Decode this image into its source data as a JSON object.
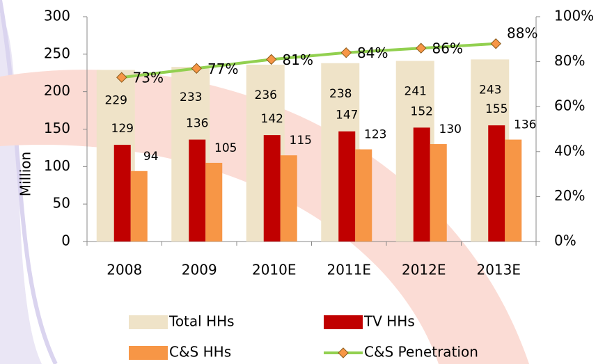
{
  "chart_data": {
    "type": "bar-line",
    "y_axis_label": "Million",
    "categories": [
      "2008",
      "2009",
      "2010E",
      "2011E",
      "2012E",
      "2013E"
    ],
    "series": [
      {
        "name": "Total HHs",
        "type": "bar",
        "color": "#efe3c8",
        "values": [
          229,
          233,
          236,
          238,
          241,
          243
        ]
      },
      {
        "name": "TV HHs",
        "type": "bar",
        "color": "#c00000",
        "values": [
          129,
          136,
          142,
          147,
          152,
          155
        ]
      },
      {
        "name": "C&S HHs",
        "type": "bar",
        "color": "#f79646",
        "values": [
          94,
          105,
          115,
          123,
          130,
          136
        ]
      },
      {
        "name": "C&S Penetration",
        "type": "line",
        "axis": "y2",
        "color": "#92d050",
        "marker_color": "#f79646",
        "values": [
          73,
          77,
          81,
          84,
          86,
          88
        ],
        "value_labels": [
          "73%",
          "77%",
          "81%",
          "84%",
          "86%",
          "88%"
        ]
      }
    ],
    "ylim": [
      0,
      300
    ],
    "yticks": [
      0,
      50,
      100,
      150,
      200,
      250,
      300
    ],
    "y2lim": [
      0,
      100
    ],
    "y2ticks": [
      {
        "value": 0,
        "label": "0%"
      },
      {
        "value": 20,
        "label": "20%"
      },
      {
        "value": 40,
        "label": "40%"
      },
      {
        "value": 60,
        "label": "60%"
      },
      {
        "value": 80,
        "label": "80%"
      },
      {
        "value": 100,
        "label": "100%"
      }
    ],
    "legend": "bottom"
  }
}
